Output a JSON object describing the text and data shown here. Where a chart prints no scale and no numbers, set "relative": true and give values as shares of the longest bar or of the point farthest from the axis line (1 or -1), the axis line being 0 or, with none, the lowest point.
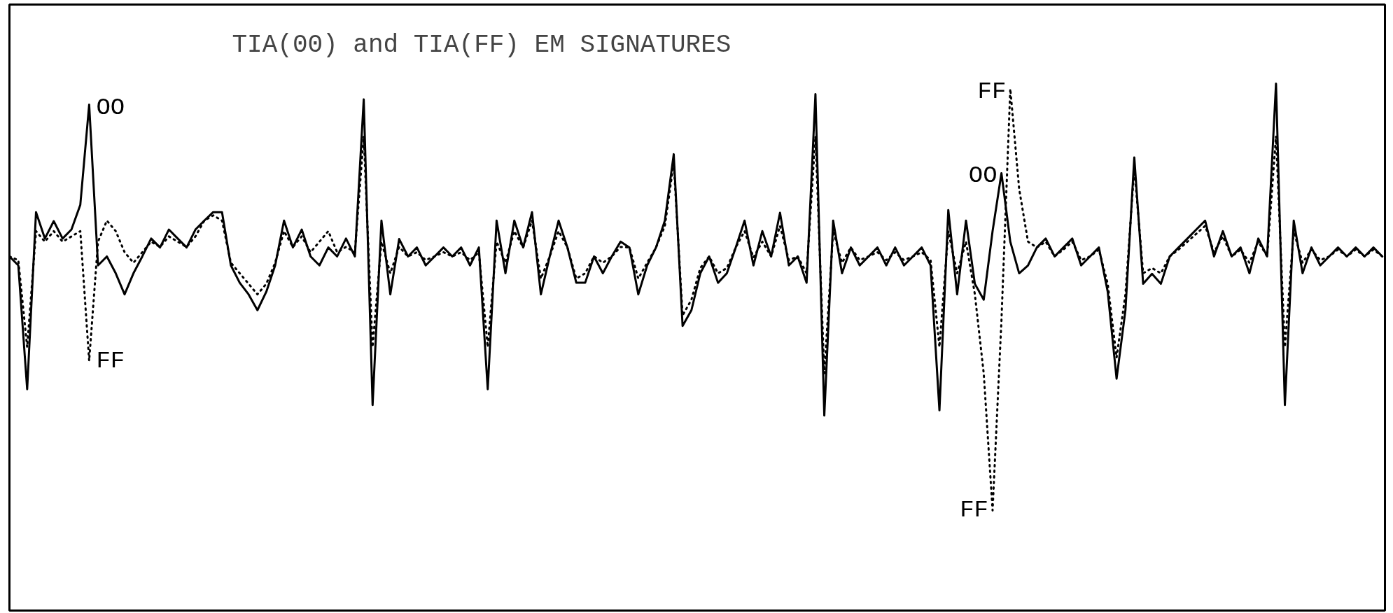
{
  "chart_data": {
    "type": "line",
    "title": "TIA(00) and TIA(FF) EM SIGNATURES",
    "relative": true,
    "categories": [
      null,
      null,
      null,
      null,
      null,
      null,
      null,
      null,
      null,
      null,
      null,
      null,
      null,
      null,
      null,
      null,
      null,
      null,
      null,
      null,
      null,
      null,
      null,
      null,
      null,
      null,
      null,
      null,
      null,
      null,
      null,
      null,
      null,
      null,
      null,
      null,
      null,
      null,
      null,
      null,
      null,
      null,
      null,
      null,
      null,
      null,
      null,
      null,
      null,
      null,
      null,
      null,
      null,
      null,
      null,
      null,
      null,
      null,
      null,
      null,
      null,
      null,
      null,
      null,
      null,
      null,
      null,
      null,
      null,
      null,
      null,
      null,
      null,
      null,
      null,
      null,
      null,
      null,
      null,
      null,
      null,
      null,
      null,
      null,
      null,
      null,
      null,
      null,
      null,
      null,
      null,
      null,
      null,
      null,
      null,
      null,
      null,
      null,
      null,
      null,
      null,
      null,
      null,
      null,
      null,
      null,
      null,
      null,
      null,
      null,
      null,
      null,
      null,
      null,
      null,
      null,
      null,
      null,
      null,
      null,
      null,
      null,
      null,
      null,
      null,
      null,
      null,
      null,
      null,
      null,
      null,
      null,
      null,
      null,
      null,
      null,
      null,
      null,
      null,
      null,
      null,
      null,
      null,
      null,
      null,
      null,
      null,
      null,
      null,
      null,
      null,
      null,
      null,
      null,
      null,
      null
    ],
    "tick_labels": false,
    "grid": false,
    "legend": false,
    "series": [
      {
        "name": "OO",
        "color": "#000000",
        "line_style": "solid",
        "values": [
          0.672,
          0.655,
          0.42,
          0.756,
          0.706,
          0.739,
          0.706,
          0.723,
          0.77,
          0.96,
          0.655,
          0.672,
          0.64,
          0.6,
          0.64,
          0.672,
          0.706,
          0.689,
          0.723,
          0.706,
          0.689,
          0.723,
          0.74,
          0.756,
          0.756,
          0.655,
          0.622,
          0.6,
          0.57,
          0.605,
          0.655,
          0.74,
          0.689,
          0.723,
          0.672,
          0.655,
          0.689,
          0.672,
          0.706,
          0.672,
          0.97,
          0.39,
          0.74,
          0.6,
          0.705,
          0.672,
          0.689,
          0.655,
          0.672,
          0.689,
          0.672,
          0.689,
          0.655,
          0.689,
          0.42,
          0.74,
          0.64,
          0.74,
          0.689,
          0.756,
          0.6,
          0.672,
          0.74,
          0.689,
          0.622,
          0.622,
          0.672,
          0.64,
          0.672,
          0.7,
          0.689,
          0.6,
          0.655,
          0.689,
          0.74,
          0.866,
          0.54,
          0.57,
          0.64,
          0.672,
          0.622,
          0.64,
          0.689,
          0.74,
          0.655,
          0.72,
          0.672,
          0.755,
          0.655,
          0.672,
          0.622,
          0.98,
          0.37,
          0.74,
          0.64,
          0.689,
          0.655,
          0.672,
          0.689,
          0.655,
          0.689,
          0.655,
          0.672,
          0.689,
          0.655,
          0.38,
          0.76,
          0.6,
          0.74,
          0.62,
          0.59,
          0.72,
          0.83,
          0.7,
          0.64,
          0.655,
          0.689,
          0.706,
          0.672,
          0.689,
          0.706,
          0.655,
          0.672,
          0.689,
          0.605,
          0.44,
          0.57,
          0.86,
          0.62,
          0.639,
          0.62,
          0.672,
          0.689,
          0.706,
          0.723,
          0.74,
          0.672,
          0.72,
          0.672,
          0.689,
          0.64,
          0.706,
          0.672,
          1.0,
          0.39,
          0.74,
          0.64,
          0.689,
          0.655,
          0.672,
          0.689,
          0.672,
          0.689,
          0.672,
          0.689,
          0.672
        ]
      },
      {
        "name": "FF",
        "color": "#000000",
        "line_style": "dotted",
        "values": [
          0.672,
          0.665,
          0.5,
          0.72,
          0.7,
          0.72,
          0.7,
          0.71,
          0.72,
          0.474,
          0.7,
          0.74,
          0.72,
          0.68,
          0.66,
          0.68,
          0.7,
          0.69,
          0.71,
          0.7,
          0.69,
          0.71,
          0.74,
          0.75,
          0.74,
          0.66,
          0.64,
          0.62,
          0.6,
          0.62,
          0.66,
          0.72,
          0.69,
          0.71,
          0.68,
          0.7,
          0.72,
          0.68,
          0.69,
          0.68,
          0.9,
          0.5,
          0.7,
          0.64,
          0.69,
          0.672,
          0.68,
          0.665,
          0.672,
          0.68,
          0.672,
          0.68,
          0.665,
          0.68,
          0.5,
          0.7,
          0.66,
          0.72,
          0.689,
          0.74,
          0.63,
          0.672,
          0.72,
          0.689,
          0.63,
          0.64,
          0.672,
          0.66,
          0.672,
          0.69,
          0.689,
          0.63,
          0.66,
          0.689,
          0.73,
          0.85,
          0.56,
          0.59,
          0.65,
          0.672,
          0.64,
          0.65,
          0.689,
          0.72,
          0.67,
          0.7,
          0.672,
          0.73,
          0.665,
          0.672,
          0.64,
          0.9,
          0.45,
          0.72,
          0.66,
          0.689,
          0.665,
          0.672,
          0.68,
          0.665,
          0.68,
          0.665,
          0.672,
          0.68,
          0.665,
          0.5,
          0.72,
          0.64,
          0.7,
          0.6,
          0.45,
          0.19,
          0.55,
          0.99,
          0.8,
          0.7,
          0.689,
          0.7,
          0.672,
          0.685,
          0.7,
          0.665,
          0.672,
          0.685,
          0.62,
          0.48,
          0.6,
          0.84,
          0.64,
          0.65,
          0.64,
          0.672,
          0.685,
          0.7,
          0.715,
          0.73,
          0.68,
          0.71,
          0.672,
          0.685,
          0.66,
          0.7,
          0.672,
          0.9,
          0.5,
          0.72,
          0.66,
          0.685,
          0.665,
          0.672,
          0.685,
          0.672,
          0.685,
          0.672,
          0.685,
          0.672
        ]
      }
    ]
  }
}
